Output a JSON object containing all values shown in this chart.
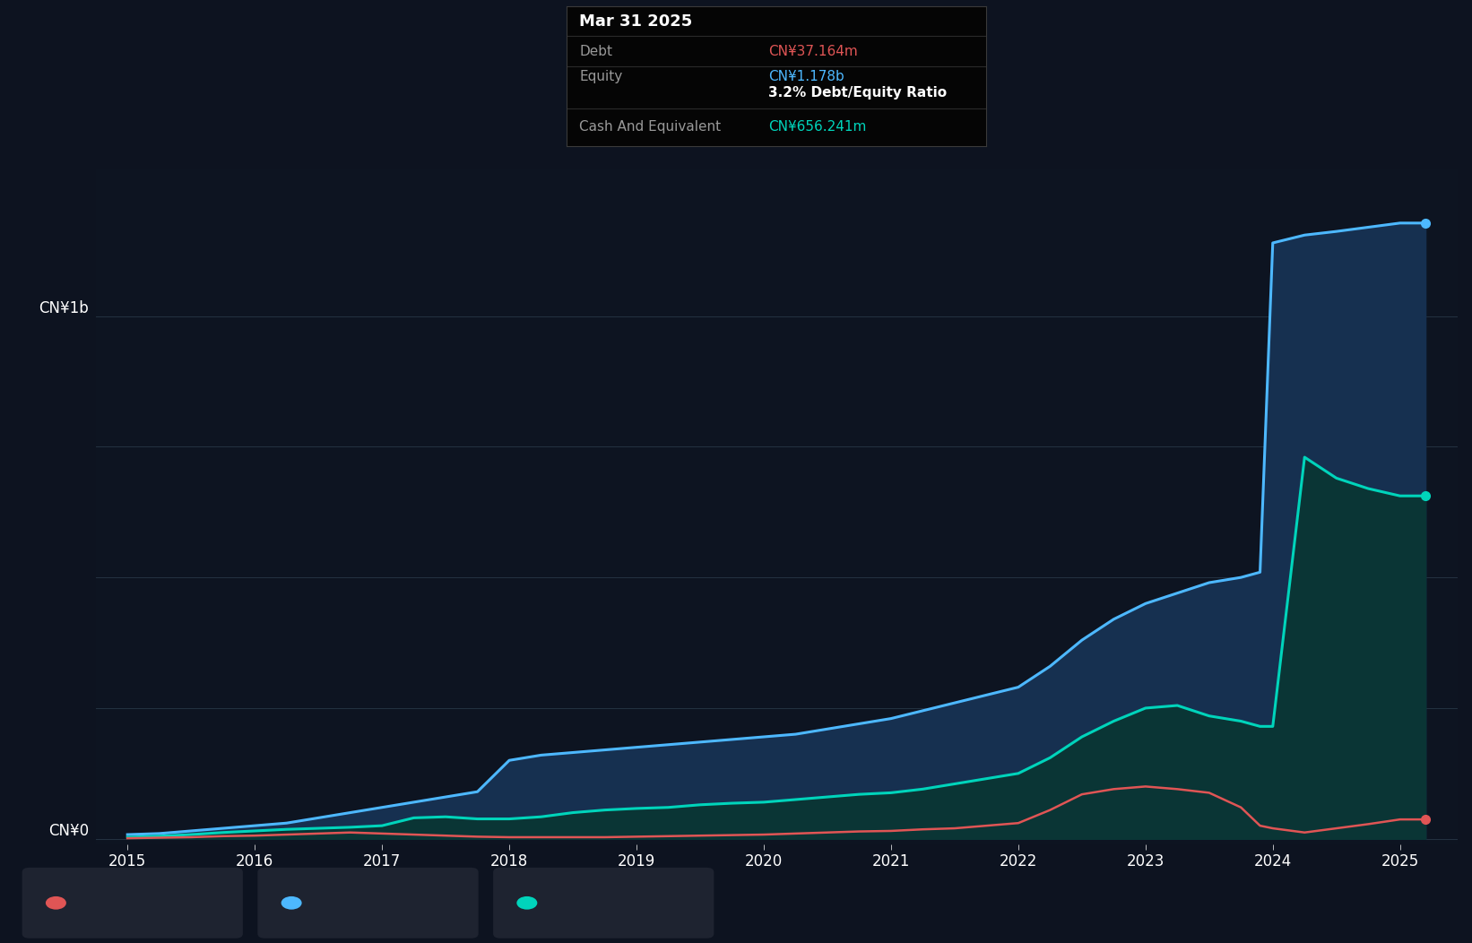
{
  "bg_color": "#0d1320",
  "plot_bg_color": "#0d1421",
  "grid_color": "#2a3a4a",
  "debt_color": "#e05555",
  "equity_color": "#4db8ff",
  "cash_color": "#00d4bb",
  "equity_fill": "#163050",
  "cash_fill": "#0a3535",
  "ylabel_1b": "CN¥1b",
  "ylabel_0": "CN¥0",
  "tooltip_bg": "#050505",
  "title_text": "Mar 31 2025",
  "debt_label": "Debt",
  "equity_label": "Equity",
  "cash_label": "Cash And Equivalent",
  "debt_value": "CN¥37.164m",
  "equity_value": "CN¥1.178b",
  "ratio_text": "3.2% Debt/Equity Ratio",
  "cash_value": "CN¥656.241m",
  "dates": [
    2015.0,
    2015.25,
    2015.5,
    2015.75,
    2016.0,
    2016.25,
    2016.5,
    2016.75,
    2017.0,
    2017.25,
    2017.5,
    2017.75,
    2018.0,
    2018.25,
    2018.5,
    2018.75,
    2019.0,
    2019.25,
    2019.5,
    2019.75,
    2020.0,
    2020.25,
    2020.5,
    2020.75,
    2021.0,
    2021.25,
    2021.5,
    2021.75,
    2022.0,
    2022.25,
    2022.5,
    2022.75,
    2023.0,
    2023.25,
    2023.5,
    2023.75,
    2023.9,
    2024.0,
    2024.25,
    2024.5,
    2024.75,
    2025.0,
    2025.2
  ],
  "equity_values": [
    0.008,
    0.01,
    0.015,
    0.02,
    0.025,
    0.03,
    0.04,
    0.05,
    0.06,
    0.07,
    0.08,
    0.09,
    0.15,
    0.16,
    0.165,
    0.17,
    0.175,
    0.18,
    0.185,
    0.19,
    0.195,
    0.2,
    0.21,
    0.22,
    0.23,
    0.245,
    0.26,
    0.275,
    0.29,
    0.33,
    0.38,
    0.42,
    0.45,
    0.47,
    0.49,
    0.5,
    0.51,
    1.14,
    1.155,
    1.162,
    1.17,
    1.178,
    1.178
  ],
  "cash_values": [
    0.003,
    0.005,
    0.008,
    0.012,
    0.015,
    0.018,
    0.02,
    0.022,
    0.025,
    0.04,
    0.042,
    0.038,
    0.038,
    0.042,
    0.05,
    0.055,
    0.058,
    0.06,
    0.065,
    0.068,
    0.07,
    0.075,
    0.08,
    0.085,
    0.088,
    0.095,
    0.105,
    0.115,
    0.125,
    0.155,
    0.195,
    0.225,
    0.25,
    0.255,
    0.235,
    0.225,
    0.215,
    0.215,
    0.73,
    0.69,
    0.67,
    0.656,
    0.656
  ],
  "debt_values": [
    0.001,
    0.002,
    0.003,
    0.005,
    0.006,
    0.008,
    0.01,
    0.012,
    0.01,
    0.008,
    0.006,
    0.004,
    0.003,
    0.003,
    0.003,
    0.003,
    0.004,
    0.005,
    0.006,
    0.007,
    0.008,
    0.01,
    0.012,
    0.014,
    0.015,
    0.018,
    0.02,
    0.025,
    0.03,
    0.055,
    0.085,
    0.095,
    0.1,
    0.095,
    0.088,
    0.06,
    0.025,
    0.02,
    0.012,
    0.02,
    0.028,
    0.037,
    0.037
  ],
  "xmin": 2014.75,
  "xmax": 2025.45,
  "ymin": -0.01,
  "ymax": 1.28
}
